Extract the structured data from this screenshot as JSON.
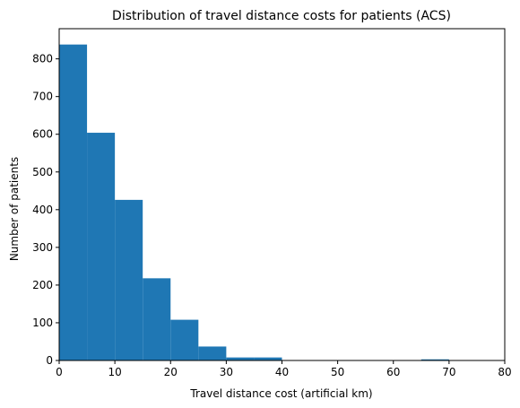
{
  "chart_data": {
    "type": "bar",
    "title": "Distribution of travel distance costs for patients (ACS)",
    "xlabel": "Travel distance cost (artificial km)",
    "ylabel": "Number of patients",
    "xlim": [
      0,
      80
    ],
    "ylim": [
      0,
      880
    ],
    "xticks": [
      0,
      10,
      20,
      30,
      40,
      50,
      60,
      70,
      80
    ],
    "yticks": [
      0,
      100,
      200,
      300,
      400,
      500,
      600,
      700,
      800
    ],
    "bin_width": 5,
    "bins": [
      {
        "start": 0,
        "end": 5,
        "count": 838
      },
      {
        "start": 5,
        "end": 10,
        "count": 604
      },
      {
        "start": 10,
        "end": 15,
        "count": 426
      },
      {
        "start": 15,
        "end": 20,
        "count": 218
      },
      {
        "start": 20,
        "end": 25,
        "count": 108
      },
      {
        "start": 25,
        "end": 30,
        "count": 37
      },
      {
        "start": 30,
        "end": 35,
        "count": 8
      },
      {
        "start": 35,
        "end": 40,
        "count": 8
      },
      {
        "start": 40,
        "end": 45,
        "count": 1
      },
      {
        "start": 45,
        "end": 50,
        "count": 1
      },
      {
        "start": 50,
        "end": 55,
        "count": 1
      },
      {
        "start": 55,
        "end": 60,
        "count": 0
      },
      {
        "start": 60,
        "end": 65,
        "count": 0
      },
      {
        "start": 65,
        "end": 70,
        "count": 3
      },
      {
        "start": 70,
        "end": 75,
        "count": 0
      },
      {
        "start": 75,
        "end": 80,
        "count": 1
      }
    ],
    "bar_color": "#1f77b4",
    "grid": false,
    "legend": "none"
  }
}
